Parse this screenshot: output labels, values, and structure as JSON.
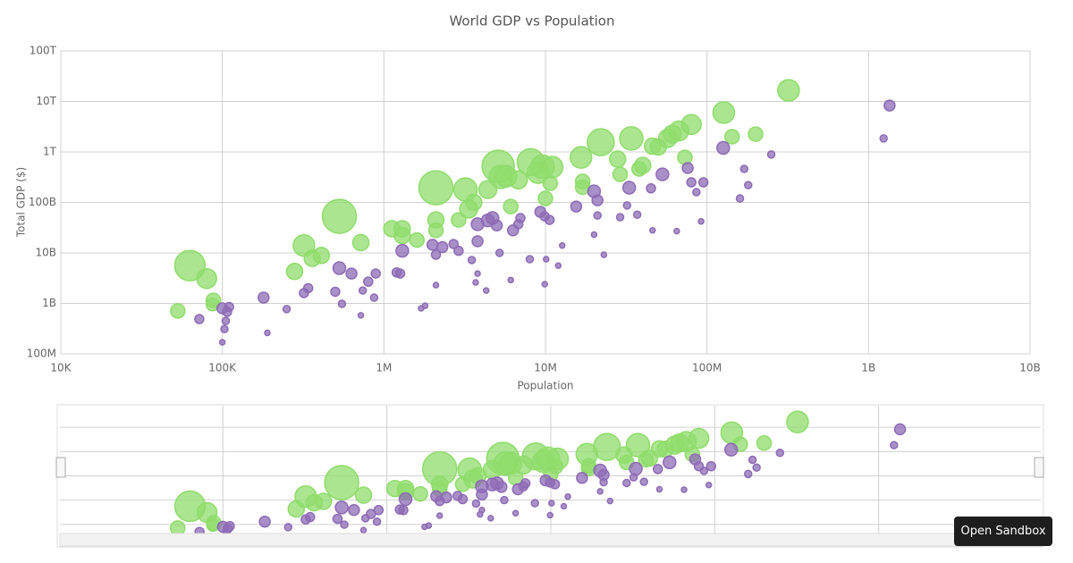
{
  "chart_data": {
    "type": "bubble",
    "title": "World GDP vs Population",
    "xlabel": "Population",
    "ylabel": "Total GDP ($)",
    "xlog": true,
    "ylog": true,
    "grid": true,
    "xlim": [
      10000,
      10000000000
    ],
    "ylim": [
      100000000,
      100000000000000
    ],
    "xticks": [
      {
        "value": 10000,
        "label": "10K"
      },
      {
        "value": 100000,
        "label": "100K"
      },
      {
        "value": 1000000,
        "label": "1M"
      },
      {
        "value": 10000000,
        "label": "10M"
      },
      {
        "value": 100000000,
        "label": "100M"
      },
      {
        "value": 1000000000,
        "label": "1B"
      },
      {
        "value": 10000000000,
        "label": "10B"
      }
    ],
    "yticks": [
      {
        "value": 100000000,
        "label": "100M"
      },
      {
        "value": 1000000000,
        "label": "1B"
      },
      {
        "value": 10000000000,
        "label": "10B"
      },
      {
        "value": 100000000000,
        "label": "100B"
      },
      {
        "value": 1000000000000,
        "label": "1T"
      },
      {
        "value": 10000000000000,
        "label": "10T"
      },
      {
        "value": 100000000000000,
        "label": "100T"
      }
    ],
    "series": [
      {
        "color": "#8fdc6b",
        "x": [
          53000,
          63000,
          80000,
          88000,
          87000,
          280000,
          320000,
          360000,
          410000,
          530000,
          720000,
          1120000,
          1300000,
          1300000,
          1600000,
          2100000,
          2100000,
          2100000,
          2900000,
          3200000,
          3350000,
          3600000,
          4400000,
          5100000,
          5300000,
          6100000,
          5700000,
          6800000,
          8100000,
          9000000,
          9600000,
          11000000,
          10000000,
          10700000,
          16600000,
          17000000,
          17000000,
          22000000,
          28000000,
          29000000,
          34000000,
          40000000,
          38000000,
          46000000,
          50000000,
          57000000,
          61000000,
          67000000,
          73000000,
          80000000,
          127000000,
          143000000,
          200000000,
          320000000
        ],
        "values": [
          710000000,
          5600000000,
          3100000000,
          1150000000,
          950000000,
          4300000000,
          14000000000,
          7800000000,
          8900000000,
          53000000000,
          16000000000,
          30000000000,
          30000000000,
          22000000000,
          18000000000,
          195000000000,
          45000000000,
          28000000000,
          45000000000,
          180000000000,
          74000000000,
          100000000000,
          180000000000,
          520000000000,
          320000000000,
          83000000000,
          330000000000,
          280000000000,
          630000000000,
          390000000000,
          510000000000,
          500000000000,
          120000000000,
          240000000000,
          780000000000,
          200000000000,
          260000000000,
          1560000000000,
          720000000000,
          360000000000,
          1850000000000,
          540000000000,
          460000000000,
          1300000000000,
          1250000000000,
          1850000000000,
          2250000000000,
          2600000000000,
          780000000000,
          3500000000000,
          6000000000000,
          2000000000000,
          2250000000000,
          16600000000000
        ],
        "sizes": [
          8,
          17,
          11,
          8,
          7,
          9,
          12,
          9,
          9,
          19,
          9,
          9,
          9,
          9,
          8,
          19,
          9,
          8,
          8,
          13,
          10,
          9,
          10,
          18,
          13,
          8,
          12,
          10,
          15,
          12,
          13,
          12,
          8,
          8,
          12,
          8,
          8,
          15,
          9,
          8,
          13,
          9,
          8,
          9,
          9,
          10,
          10,
          11,
          8,
          11,
          12,
          8,
          8,
          12
        ]
      },
      {
        "color": "#8e6bb5",
        "x": [
          100000,
          107000,
          105000,
          103000,
          100000,
          72000,
          110000,
          180000,
          190000,
          250000,
          340000,
          320000,
          500000,
          530000,
          550000,
          630000,
          720000,
          740000,
          800000,
          890000,
          870000,
          1260000,
          1300000,
          1700000,
          1800000,
          2100000,
          2000000,
          2300000,
          2100000,
          2700000,
          2900000,
          3500000,
          3800000,
          3800000,
          4300000,
          3800000,
          4400000,
          4700000,
          5000000,
          5200000,
          6100000,
          6300000,
          6800000,
          7000000,
          8000000,
          9300000,
          9900000,
          10600000,
          9900000,
          10100000,
          12000000,
          12700000,
          15500000,
          20000000,
          21000000,
          21000000,
          20000000,
          23000000,
          29000000,
          32000000,
          33000000,
          37000000,
          45000000,
          53000000,
          46000000,
          65000000,
          76000000,
          80000000,
          86000000,
          92000000,
          95000000,
          126000000,
          160000000,
          170000000,
          180000000,
          250000000,
          1240000000,
          1350000000,
          3700000,
          1200000
        ],
        "values": [
          800000000,
          680000000,
          450000000,
          310000000,
          170000000,
          490000000,
          850000000,
          1300000000,
          260000000,
          770000000,
          2000000000,
          1600000000,
          1700000000,
          5000000000,
          980000000,
          3900000000,
          580000000,
          1800000000,
          2700000000,
          3900000000,
          1300000000,
          3900000000,
          11000000000,
          800000000,
          900000000,
          2300000000,
          14500000000,
          13000000000,
          9200000000,
          15000000000,
          11000000000,
          7200000000,
          17000000000,
          37000000000,
          1800000000,
          3900000000,
          44000000000,
          49000000000,
          35000000000,
          10000000000,
          2900000000,
          28000000000,
          37000000000,
          49000000000,
          7500000000,
          65000000000,
          53000000000,
          45000000000,
          2400000000,
          7500000000,
          5600000000,
          14000000000,
          83000000000,
          166000000000,
          110000000000,
          55000000000,
          23000000000,
          9200000000,
          51000000000,
          87000000000,
          196000000000,
          57000000000,
          190000000000,
          360000000000,
          28000000000,
          27000000000,
          480000000000,
          250000000000,
          160000000000,
          42000000000,
          250000000000,
          1200000000000,
          120000000000,
          460000000000,
          220000000000,
          890000000000,
          1850000000000,
          8300000000000,
          2600000000,
          4100000000
        ],
        "sizes": [
          6,
          5,
          4,
          4,
          3,
          5,
          5,
          6,
          3,
          4,
          5,
          5,
          5,
          7,
          4,
          6,
          3,
          4,
          5,
          5,
          4,
          5,
          7,
          3,
          3,
          3,
          6,
          6,
          5,
          5,
          5,
          4,
          6,
          7,
          3,
          3,
          7,
          7,
          6,
          4,
          3,
          6,
          5,
          5,
          4,
          6,
          5,
          5,
          3,
          3,
          3,
          3,
          6,
          7,
          6,
          4,
          3,
          3,
          4,
          4,
          7,
          4,
          5,
          7,
          3,
          3,
          6,
          5,
          4,
          3,
          5,
          7,
          4,
          4,
          4,
          4,
          4,
          6,
          3,
          5
        ]
      }
    ]
  },
  "sandbox_button": "Open Sandbox"
}
